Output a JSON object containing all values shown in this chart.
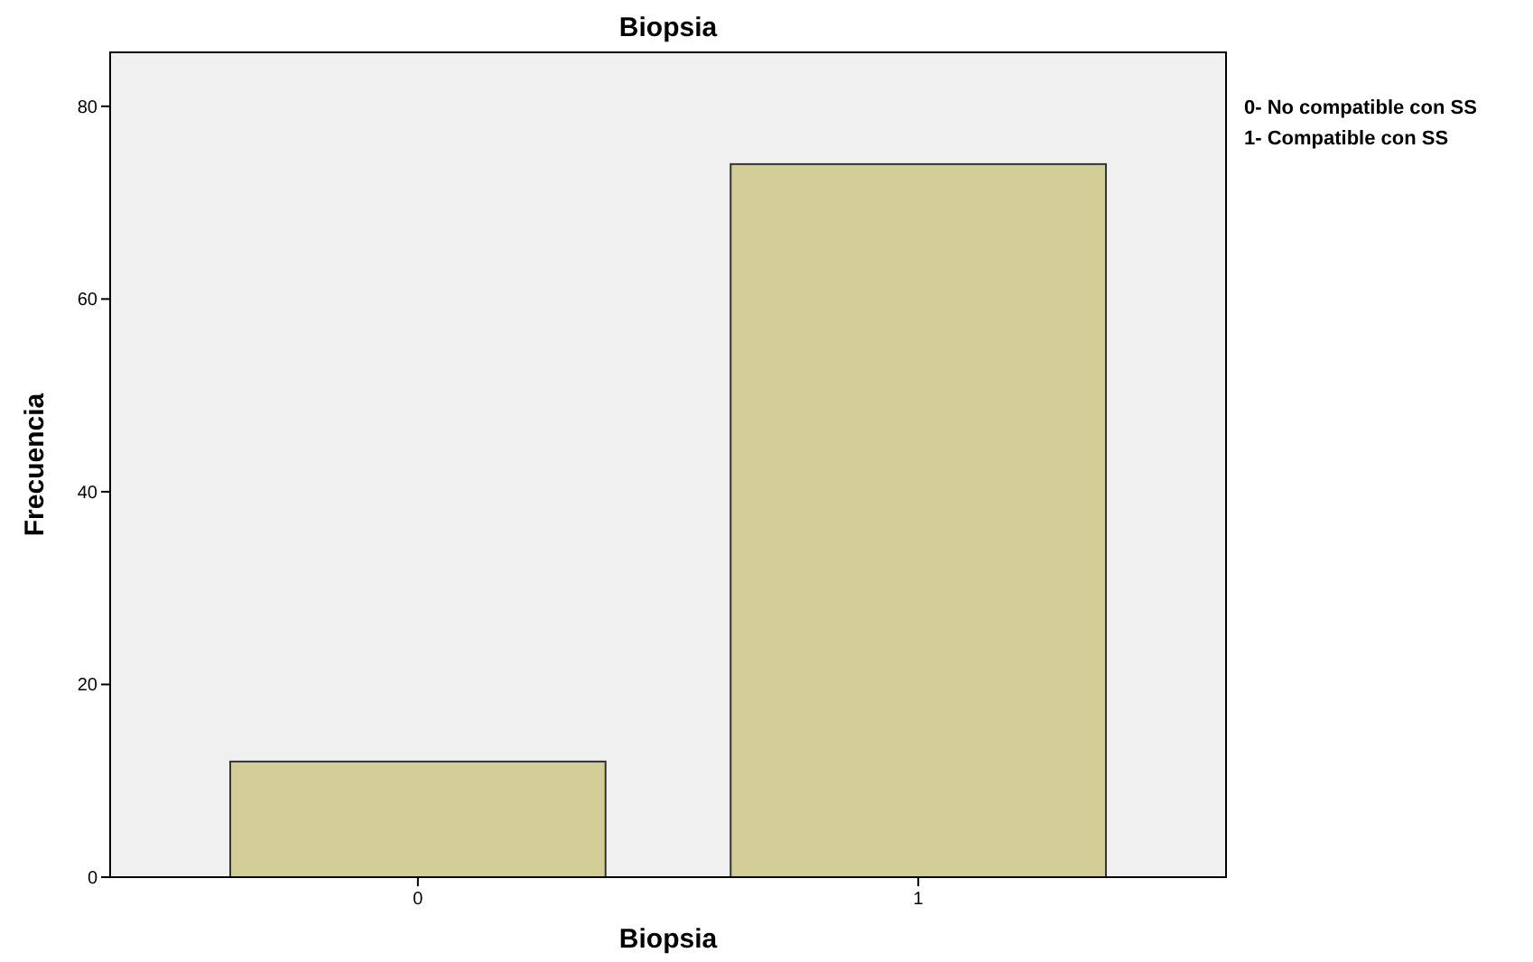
{
  "chart_data": {
    "type": "bar",
    "title": "Biopsia",
    "xlabel": "Biopsia",
    "ylabel": "Frecuencia",
    "categories": [
      "0",
      "1"
    ],
    "values": [
      12,
      74
    ],
    "color": "#d3ce98",
    "ylim": [
      0,
      85.6
    ],
    "yticks": [
      0,
      20,
      40,
      60,
      80
    ],
    "grid": false,
    "annotations": [
      "0- No compatible con SS",
      "1- Compatible con SS"
    ]
  }
}
